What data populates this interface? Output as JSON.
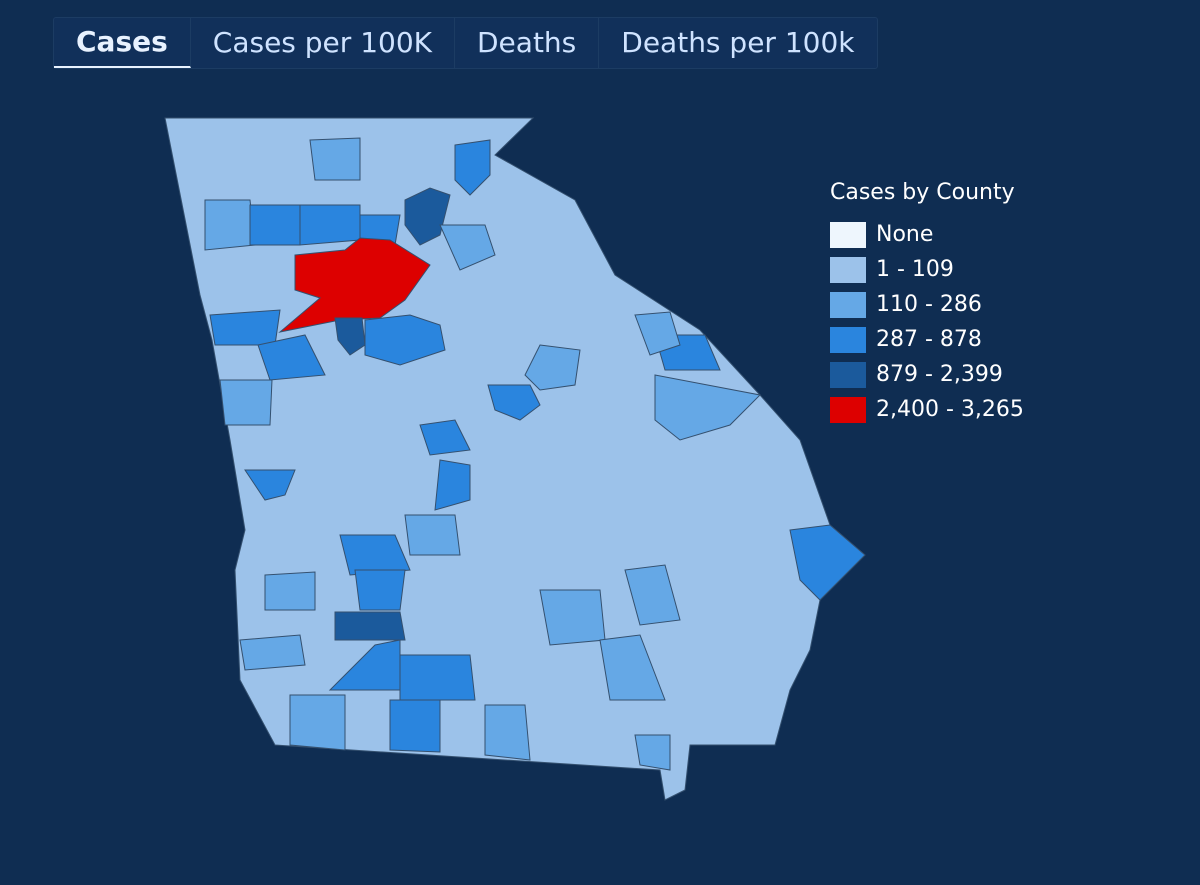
{
  "tabs": [
    "Cases",
    "Cases per 100K",
    "Deaths",
    "Deaths per 100k"
  ],
  "legend": {
    "title": "Cases by County",
    "items": [
      {
        "label": "None",
        "color": "#eef6fd"
      },
      {
        "label": "1 - 109",
        "color": "#9cc2ea"
      },
      {
        "label": "110 - 286",
        "color": "#65a8e6"
      },
      {
        "label": "287 - 878",
        "color": "#2a85de"
      },
      {
        "label": "879 - 2,399",
        "color": "#1b5a9c"
      },
      {
        "label": "2,400 - 3,265",
        "color": "#dd0000"
      }
    ]
  }
}
